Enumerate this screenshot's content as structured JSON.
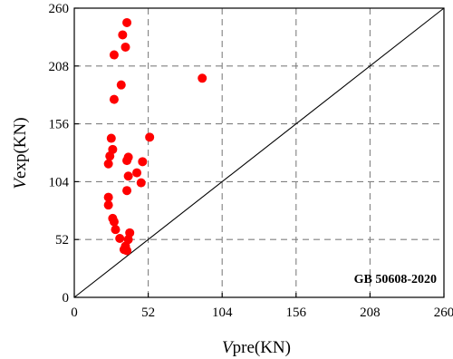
{
  "chart_data": {
    "type": "scatter",
    "xlim": [
      0,
      260
    ],
    "ylim": [
      0,
      260
    ],
    "xticks": [
      "0",
      "52",
      "104",
      "156",
      "208",
      "260"
    ],
    "yticks": [
      "0",
      "52",
      "104",
      "156",
      "208",
      "260"
    ],
    "tick_values": [
      0,
      52,
      104,
      156,
      208,
      260
    ],
    "xlabel": {
      "italic": "V",
      "rest": "pre(KN)"
    },
    "ylabel": {
      "italic": "V",
      "rest": "exp(KN)"
    },
    "annotation": "GB 50608-2020",
    "grid": true,
    "reference_line": {
      "from": [
        0,
        0
      ],
      "to": [
        260,
        260
      ],
      "color": "#000000"
    },
    "series": [
      {
        "marker_color": "#ff0000",
        "points": [
          [
            37,
            247
          ],
          [
            34,
            236
          ],
          [
            36,
            225
          ],
          [
            28,
            218
          ],
          [
            33,
            191
          ],
          [
            28,
            178
          ],
          [
            90,
            197
          ],
          [
            53,
            144
          ],
          [
            26,
            143
          ],
          [
            27,
            133
          ],
          [
            38,
            126
          ],
          [
            25,
            127
          ],
          [
            37,
            123
          ],
          [
            48,
            122
          ],
          [
            24,
            120
          ],
          [
            44,
            112
          ],
          [
            38,
            109
          ],
          [
            47,
            103
          ],
          [
            37,
            96
          ],
          [
            24,
            90
          ],
          [
            24,
            83
          ],
          [
            27,
            71
          ],
          [
            28,
            68
          ],
          [
            29,
            61
          ],
          [
            39,
            58
          ],
          [
            32,
            53
          ],
          [
            38,
            52
          ],
          [
            36,
            46
          ],
          [
            35,
            43
          ],
          [
            37,
            42
          ]
        ]
      }
    ]
  },
  "colors": {
    "axis": "#000000",
    "grid": "#808080",
    "marker": "#ff0000"
  }
}
